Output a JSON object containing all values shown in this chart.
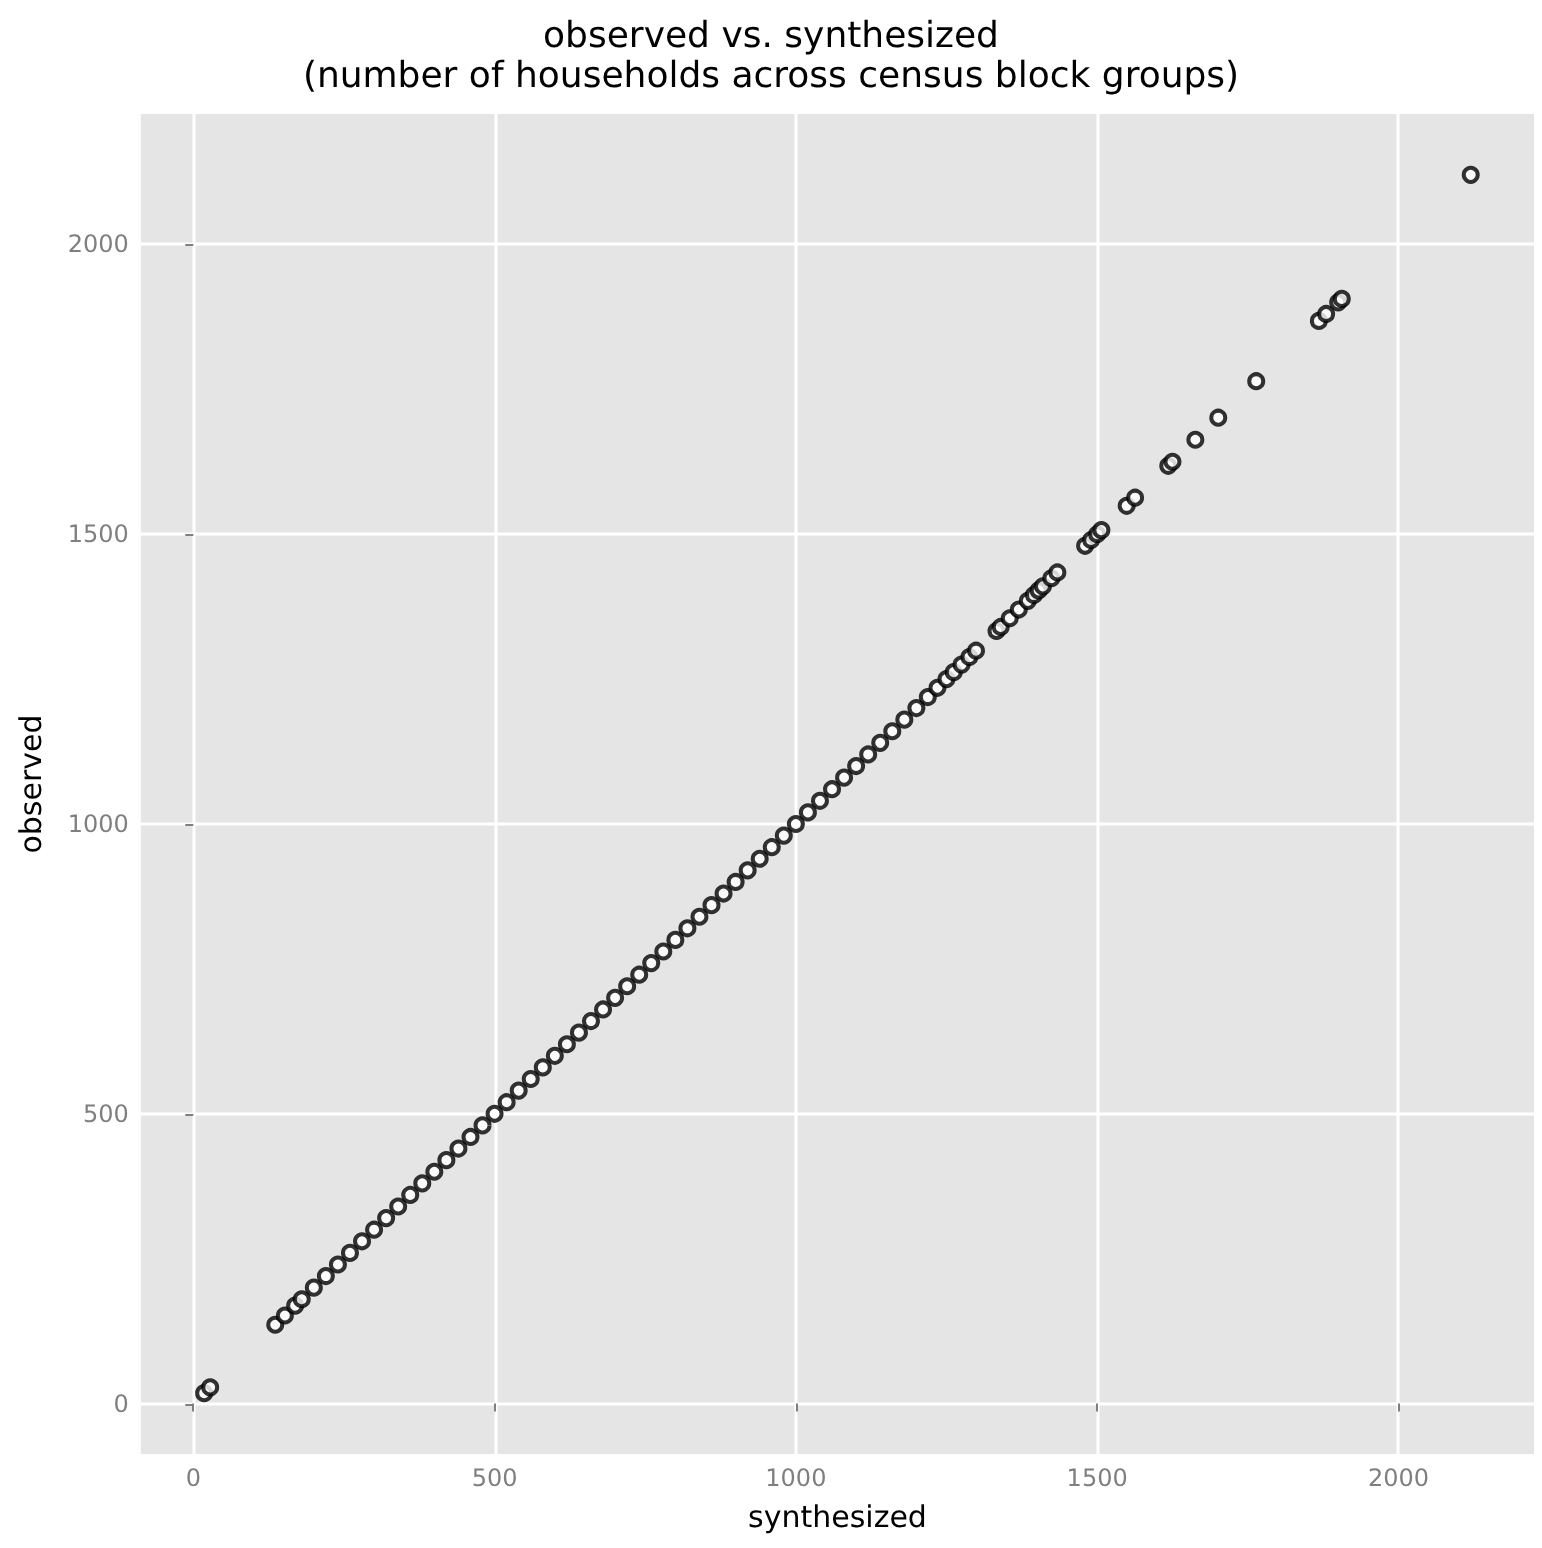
{
  "chart_data": {
    "type": "scatter",
    "title": "observed vs. synthesized",
    "subtitle": "(number of households across census block groups)",
    "xlabel": "synthesized",
    "ylabel": "observed",
    "x": [
      18,
      28,
      136,
      152,
      169,
      180,
      200,
      220,
      240,
      260,
      280,
      300,
      320,
      340,
      360,
      380,
      400,
      420,
      440,
      460,
      480,
      500,
      520,
      540,
      560,
      580,
      600,
      620,
      640,
      660,
      680,
      700,
      720,
      740,
      760,
      780,
      800,
      820,
      840,
      860,
      880,
      900,
      920,
      940,
      960,
      980,
      1000,
      1020,
      1040,
      1060,
      1080,
      1100,
      1120,
      1140,
      1160,
      1180,
      1200,
      1219,
      1235,
      1250,
      1262,
      1275,
      1288,
      1299,
      1333,
      1340,
      1355,
      1370,
      1385,
      1395,
      1403,
      1410,
      1424,
      1434,
      1480,
      1490,
      1500,
      1507,
      1549,
      1563,
      1618,
      1625,
      1663,
      1701,
      1764,
      1868,
      1880,
      1900,
      1906,
      2120
    ],
    "values": [
      18,
      28,
      136,
      152,
      169,
      180,
      200,
      220,
      240,
      260,
      280,
      300,
      320,
      340,
      360,
      380,
      400,
      420,
      440,
      460,
      480,
      500,
      520,
      540,
      560,
      580,
      600,
      620,
      640,
      660,
      680,
      700,
      720,
      740,
      760,
      780,
      800,
      820,
      840,
      860,
      880,
      900,
      920,
      940,
      960,
      980,
      1000,
      1020,
      1040,
      1060,
      1080,
      1100,
      1120,
      1140,
      1160,
      1180,
      1200,
      1219,
      1235,
      1250,
      1262,
      1275,
      1288,
      1299,
      1333,
      1340,
      1355,
      1370,
      1385,
      1395,
      1403,
      1410,
      1424,
      1434,
      1480,
      1490,
      1500,
      1507,
      1549,
      1563,
      1618,
      1625,
      1663,
      1701,
      1764,
      1868,
      1880,
      1900,
      1906,
      2120
    ],
    "color": "#000000",
    "marker": "circle",
    "grid": true,
    "xlim": [
      -87,
      2225
    ],
    "ylim": [
      -87,
      2225
    ],
    "xticks": [
      0,
      500,
      1000,
      1500,
      2000
    ],
    "yticks": [
      0,
      500,
      1000,
      1500,
      2000
    ]
  }
}
